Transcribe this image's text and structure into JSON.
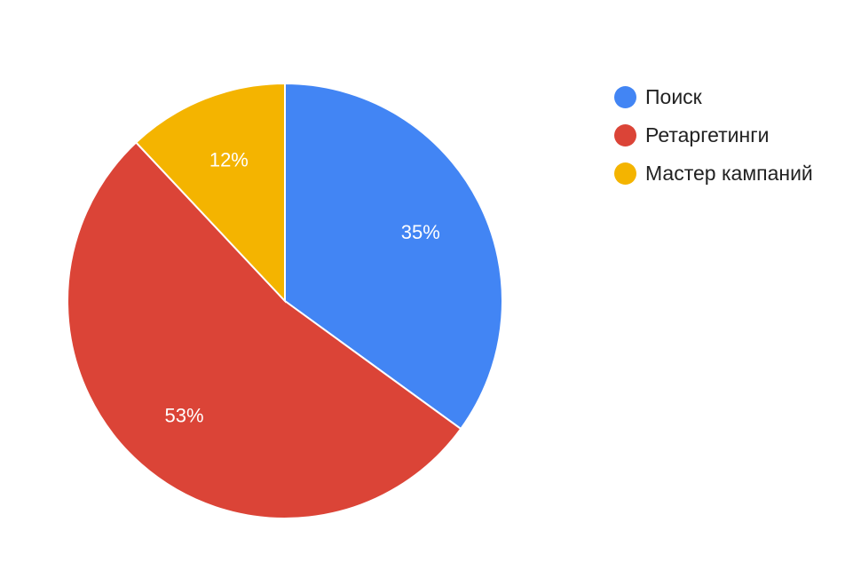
{
  "chart_data": {
    "type": "pie",
    "categories": [
      "Поиск",
      "Ретаргетинги",
      "Мастер кампаний"
    ],
    "values": [
      35,
      53,
      12
    ],
    "data_labels": [
      "35%",
      "53%",
      "12%"
    ],
    "colors": [
      "#4285f4",
      "#db4437",
      "#f4b400"
    ],
    "legend_position": "right",
    "start_angle": "top, clockwise"
  }
}
